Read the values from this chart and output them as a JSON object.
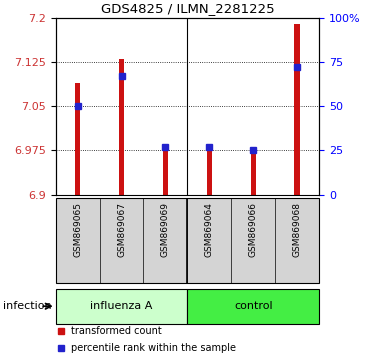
{
  "title": "GDS4825 / ILMN_2281225",
  "samples": [
    "GSM869065",
    "GSM869067",
    "GSM869069",
    "GSM869064",
    "GSM869066",
    "GSM869068"
  ],
  "red_values": [
    7.09,
    7.13,
    6.975,
    6.978,
    6.972,
    7.19
  ],
  "blue_percentiles": [
    50,
    67,
    27,
    27,
    25,
    72
  ],
  "ymin": 6.9,
  "ymax": 7.2,
  "yticks": [
    6.9,
    6.975,
    7.05,
    7.125,
    7.2
  ],
  "ytick_labels": [
    "6.9",
    "6.975",
    "7.05",
    "7.125",
    "7.2"
  ],
  "right_yticks": [
    0,
    25,
    50,
    75,
    100
  ],
  "right_ytick_labels": [
    "0",
    "25",
    "50",
    "75",
    "100%"
  ],
  "bar_color": "#cc1111",
  "dot_color": "#2222cc",
  "xlabel_group": "infection",
  "group1_label": "influenza A",
  "group2_label": "control",
  "light_green": "#ccffcc",
  "dark_green": "#44ee44",
  "gray_box": "#d4d4d4",
  "legend_red": "transformed count",
  "legend_blue": "percentile rank within the sample",
  "bar_width": 0.12
}
